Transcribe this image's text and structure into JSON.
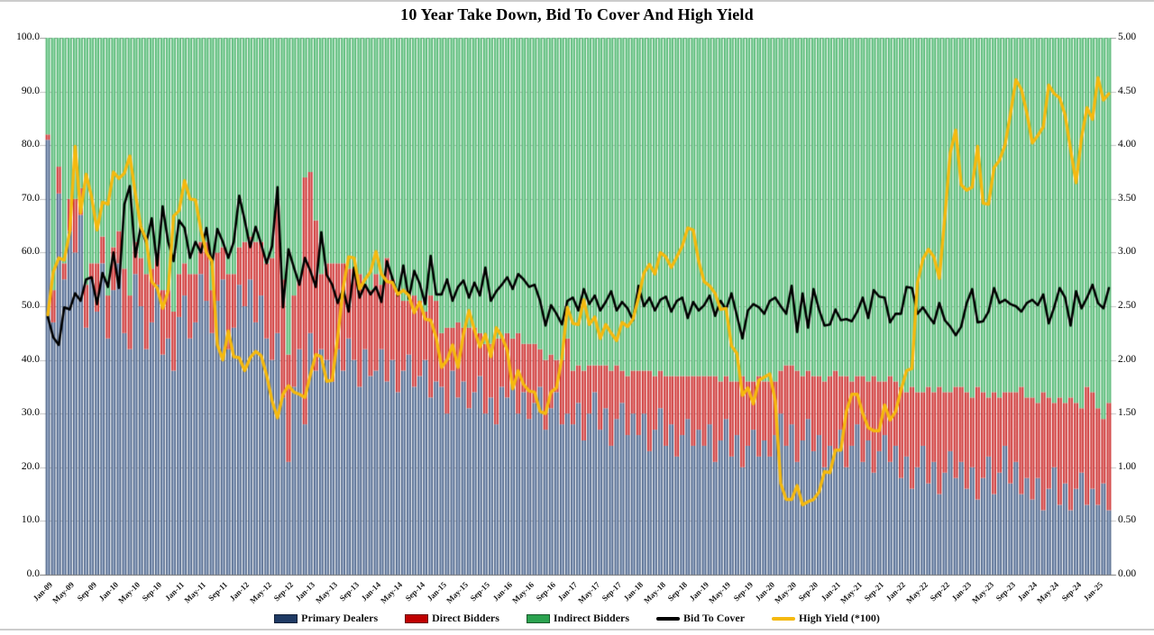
{
  "page": {
    "title": "10 Year Take Down, Bid To Cover And High Yield"
  },
  "chart_data": {
    "type": "combo: stacked 100% bars + two lines",
    "title": "10 Year Take Down, Bid To Cover And High Yield",
    "n_bars": 195,
    "x_tick_every_n_bars": 4,
    "x_tick_labels": [
      "Jan-09",
      "May-09",
      "Sep-09",
      "Jan-10",
      "May-10",
      "Sep-10",
      "Jan-11",
      "May-11",
      "Sep-11",
      "Jan-12",
      "May-12",
      "Sep-12",
      "Jan-13",
      "May-13",
      "Sep-13",
      "Jan-14",
      "May-14",
      "Sep-14",
      "Jan-15",
      "May-15",
      "Sep-15",
      "Jan-16",
      "May-16",
      "Sep-16",
      "Jan-17",
      "May-17",
      "Sep-17",
      "Jan-18",
      "May-18",
      "Sep-18",
      "Jan-19",
      "May-19",
      "Sep-19",
      "Jan-20",
      "May-20",
      "Sep-20",
      "Jan-21",
      "May-21",
      "Sep-21",
      "Jan-22",
      "May-22",
      "Sep-22",
      "Jan-23",
      "May-23",
      "Sep-23",
      "Jan-24",
      "May-24",
      "Sep-24",
      "Jan-25"
    ],
    "left_axis": {
      "min": 0,
      "max": 100,
      "step": 10,
      "tick_labels": [
        "100.0",
        "90.0",
        "80.0",
        "70.0",
        "60.0",
        "50.0",
        "40.0",
        "30.0",
        "20.0",
        "10.0",
        "0.0"
      ]
    },
    "right_axis": {
      "min": 0,
      "max": 5,
      "step": 0.5,
      "tick_labels": [
        "5.00",
        "4.50",
        "4.00",
        "3.50",
        "3.00",
        "2.50",
        "2.00",
        "1.50",
        "1.00",
        "0.50",
        "0.00"
      ]
    },
    "grid": "horizontal gridlines on, light gray",
    "legend_position": "bottom center",
    "series": [
      {
        "name": "Primary Dealers",
        "type": "bar-stacked",
        "axis": "left",
        "color": "#1F3A64",
        "color_light": "#AFBFD8",
        "values": [
          81,
          47,
          71,
          55,
          64,
          60,
          67,
          46,
          55,
          49,
          58,
          44,
          53,
          58,
          45,
          42,
          56,
          50,
          42,
          47,
          54,
          41,
          44,
          38,
          48,
          52,
          44,
          47,
          56,
          51,
          45,
          51,
          55,
          42,
          46,
          54,
          50,
          55,
          47,
          52,
          44,
          40,
          45,
          33,
          21,
          35,
          42,
          28,
          45,
          38,
          42,
          40,
          36,
          42,
          38,
          44,
          40,
          35,
          42,
          37,
          38,
          42,
          36,
          40,
          34,
          38,
          41,
          35,
          37,
          40,
          33,
          36,
          35,
          30,
          38,
          33,
          36,
          31,
          34,
          37,
          30,
          33,
          28,
          35,
          33,
          36,
          30,
          34,
          29,
          32,
          35,
          27,
          31,
          34,
          28,
          30,
          28,
          32,
          25,
          30,
          34,
          27,
          31,
          24,
          29,
          32,
          26,
          30,
          26,
          30,
          23,
          27,
          31,
          24,
          28,
          22,
          26,
          29,
          24,
          27,
          24,
          28,
          21,
          25,
          29,
          22,
          26,
          20,
          24,
          27,
          22,
          25,
          22,
          26,
          30,
          24,
          28,
          21,
          25,
          29,
          23,
          26,
          20,
          24,
          23,
          27,
          20,
          24,
          28,
          21,
          25,
          19,
          23,
          26,
          21,
          24,
          18,
          22,
          16,
          20,
          24,
          17,
          21,
          15,
          19,
          23,
          18,
          21,
          16,
          20,
          14,
          18,
          22,
          15,
          19,
          24,
          17,
          21,
          15,
          18,
          14,
          18,
          12,
          16,
          20,
          13,
          17,
          12,
          16,
          19,
          13,
          16,
          13,
          17,
          12
        ]
      },
      {
        "name": "Direct Bidders",
        "type": "bar-stacked",
        "axis": "left",
        "color": "#C00000",
        "color_light": "#E89898",
        "values": [
          1,
          6,
          5,
          3,
          6,
          10,
          5,
          8,
          3,
          9,
          5,
          8,
          8,
          6,
          12,
          10,
          6,
          9,
          14,
          10,
          6,
          12,
          9,
          11,
          8,
          6,
          12,
          9,
          6,
          11,
          8,
          9,
          6,
          14,
          10,
          7,
          12,
          8,
          15,
          10,
          14,
          19,
          24,
          22,
          20,
          17,
          13,
          46,
          30,
          28,
          14,
          18,
          22,
          16,
          20,
          13,
          17,
          21,
          12,
          16,
          18,
          12,
          23,
          15,
          19,
          13,
          10,
          17,
          14,
          9,
          19,
          15,
          10,
          16,
          8,
          14,
          10,
          15,
          12,
          8,
          13,
          10,
          16,
          9,
          12,
          8,
          15,
          9,
          14,
          11,
          7,
          13,
          10,
          6,
          12,
          14,
          10,
          7,
          13,
          9,
          5,
          12,
          8,
          14,
          10,
          6,
          11,
          8,
          12,
          8,
          15,
          10,
          7,
          13,
          9,
          15,
          11,
          8,
          13,
          10,
          13,
          9,
          16,
          11,
          8,
          14,
          10,
          17,
          12,
          9,
          15,
          11,
          14,
          10,
          8,
          15,
          11,
          17,
          12,
          9,
          14,
          11,
          16,
          13,
          15,
          10,
          17,
          12,
          9,
          16,
          11,
          18,
          13,
          10,
          16,
          12,
          17,
          12,
          19,
          14,
          10,
          18,
          13,
          20,
          15,
          11,
          17,
          14,
          18,
          13,
          21,
          16,
          11,
          19,
          14,
          10,
          17,
          13,
          20,
          15,
          19,
          14,
          22,
          17,
          12,
          20,
          15,
          21,
          16,
          12,
          22,
          18,
          18,
          12,
          20
        ]
      },
      {
        "name": "Indirect Bidders",
        "type": "bar-stacked",
        "axis": "left",
        "color": "#2BA24F",
        "color_light": "#A8E2BC",
        "derivation": "100 - Primary Dealers - Direct Bidders (bars stack to 100%)"
      },
      {
        "name": "Bid To Cover",
        "type": "line",
        "axis": "right",
        "color": "#000000",
        "line_width": 2.6,
        "values": [
          2.4,
          2.21,
          2.14,
          2.49,
          2.47,
          2.62,
          2.55,
          2.75,
          2.77,
          2.52,
          2.81,
          2.68,
          3.0,
          2.67,
          3.45,
          3.62,
          2.96,
          3.24,
          3.09,
          3.32,
          2.88,
          3.43,
          3.1,
          2.92,
          3.3,
          3.23,
          2.95,
          3.1,
          3.0,
          3.23,
          2.88,
          3.22,
          3.1,
          2.95,
          3.1,
          3.53,
          3.3,
          3.05,
          3.24,
          3.08,
          2.9,
          3.06,
          3.61,
          2.49,
          3.03,
          2.86,
          2.7,
          2.95,
          2.83,
          2.68,
          3.19,
          2.79,
          2.7,
          2.53,
          2.66,
          2.45,
          2.86,
          2.58,
          2.7,
          2.61,
          2.68,
          2.54,
          2.92,
          2.76,
          2.6,
          2.88,
          2.57,
          2.83,
          2.71,
          2.52,
          2.97,
          2.61,
          2.61,
          2.75,
          2.55,
          2.68,
          2.74,
          2.58,
          2.72,
          2.6,
          2.86,
          2.55,
          2.64,
          2.7,
          2.77,
          2.66,
          2.8,
          2.75,
          2.68,
          2.7,
          2.55,
          2.32,
          2.51,
          2.43,
          2.33,
          2.55,
          2.58,
          2.46,
          2.66,
          2.52,
          2.6,
          2.46,
          2.54,
          2.64,
          2.46,
          2.54,
          2.48,
          2.37,
          2.69,
          2.5,
          2.58,
          2.46,
          2.56,
          2.59,
          2.45,
          2.55,
          2.58,
          2.39,
          2.54,
          2.46,
          2.51,
          2.6,
          2.41,
          2.55,
          2.47,
          2.62,
          2.41,
          2.2,
          2.46,
          2.52,
          2.49,
          2.43,
          2.55,
          2.58,
          2.5,
          2.43,
          2.69,
          2.26,
          2.62,
          2.3,
          2.66,
          2.47,
          2.32,
          2.33,
          2.47,
          2.37,
          2.38,
          2.36,
          2.45,
          2.58,
          2.39,
          2.65,
          2.59,
          2.58,
          2.35,
          2.43,
          2.43,
          2.68,
          2.67,
          2.43,
          2.49,
          2.41,
          2.34,
          2.53,
          2.37,
          2.31,
          2.23,
          2.31,
          2.53,
          2.66,
          2.35,
          2.36,
          2.45,
          2.67,
          2.53,
          2.56,
          2.52,
          2.5,
          2.45,
          2.53,
          2.56,
          2.51,
          2.61,
          2.34,
          2.49,
          2.67,
          2.58,
          2.32,
          2.64,
          2.48,
          2.58,
          2.7,
          2.53,
          2.48,
          2.67
        ]
      },
      {
        "name": "High Yield (*100)",
        "type": "line",
        "axis": "right",
        "color": "#F5B90F",
        "line_width": 3.4,
        "values": [
          2.42,
          2.82,
          2.95,
          2.93,
          3.19,
          3.99,
          3.37,
          3.73,
          3.52,
          3.21,
          3.47,
          3.45,
          3.75,
          3.69,
          3.74,
          3.9,
          3.55,
          3.24,
          3.12,
          2.73,
          2.67,
          2.48,
          2.64,
          3.34,
          3.39,
          3.67,
          3.5,
          3.49,
          3.21,
          3.0,
          2.92,
          2.14,
          2.0,
          2.27,
          2.03,
          2.02,
          1.9,
          2.02,
          2.08,
          2.04,
          1.86,
          1.62,
          1.46,
          1.68,
          1.76,
          1.7,
          1.68,
          1.65,
          1.86,
          2.05,
          2.03,
          1.8,
          1.81,
          2.21,
          2.67,
          2.96,
          2.95,
          2.66,
          2.75,
          2.82,
          3.01,
          2.8,
          2.73,
          2.72,
          2.61,
          2.65,
          2.6,
          2.44,
          2.54,
          2.38,
          2.37,
          2.21,
          1.93,
          2.0,
          2.14,
          1.93,
          2.24,
          2.46,
          2.28,
          2.12,
          2.24,
          2.03,
          2.3,
          2.22,
          2.09,
          1.73,
          1.9,
          1.77,
          1.71,
          1.7,
          1.52,
          1.5,
          1.7,
          1.74,
          2.02,
          2.49,
          2.34,
          2.33,
          2.56,
          2.33,
          2.4,
          2.2,
          2.33,
          2.25,
          2.18,
          2.35,
          2.31,
          2.38,
          2.58,
          2.81,
          2.89,
          2.8,
          3.0,
          2.96,
          2.86,
          2.96,
          3.06,
          3.23,
          3.21,
          2.92,
          2.73,
          2.69,
          2.62,
          2.47,
          2.48,
          2.13,
          2.06,
          1.67,
          1.74,
          1.59,
          1.81,
          1.84,
          1.87,
          1.62,
          0.85,
          0.7,
          0.7,
          0.83,
          0.65,
          0.68,
          0.7,
          0.77,
          0.96,
          0.95,
          1.16,
          1.16,
          1.52,
          1.68,
          1.68,
          1.5,
          1.37,
          1.34,
          1.34,
          1.58,
          1.44,
          1.52,
          1.72,
          1.9,
          1.92,
          2.72,
          2.94,
          3.03,
          2.96,
          2.76,
          3.33,
          3.93,
          4.14,
          3.63,
          3.58,
          3.61,
          3.99,
          3.46,
          3.45,
          3.79,
          3.86,
          4.0,
          4.29,
          4.61,
          4.52,
          4.3,
          4.02,
          4.09,
          4.17,
          4.56,
          4.48,
          4.44,
          4.28,
          3.96,
          3.65,
          4.07,
          4.35,
          4.24,
          4.63,
          4.42,
          4.48
        ]
      }
    ]
  }
}
